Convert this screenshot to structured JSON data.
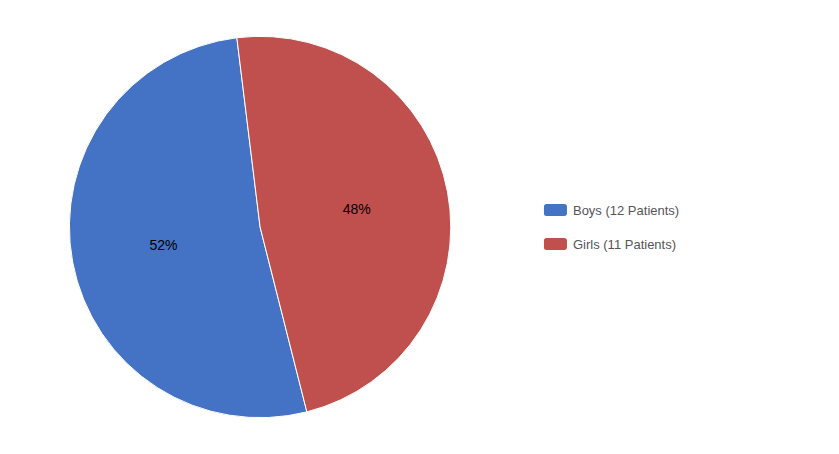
{
  "chart_data": {
    "type": "pie",
    "categories": [
      "Boys (12 Patients)",
      "Girls (11 Patients)"
    ],
    "values": [
      52,
      48
    ],
    "value_labels": [
      "52%",
      "48%"
    ],
    "colors": [
      "#4472C4",
      "#C0504D"
    ],
    "data_labels": true,
    "legend": "right"
  }
}
